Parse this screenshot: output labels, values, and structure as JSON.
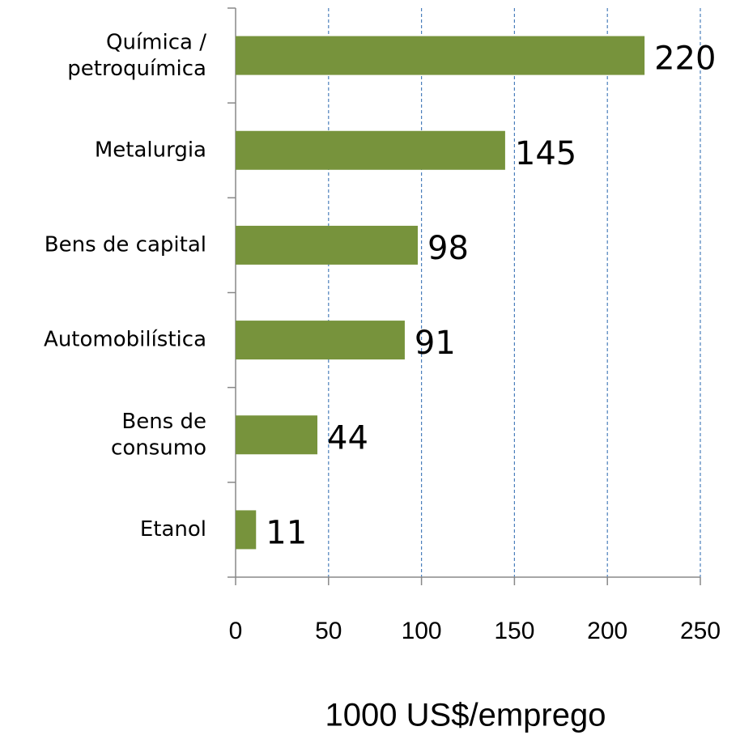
{
  "chart_data": {
    "type": "bar",
    "orientation": "horizontal",
    "x_label": "1000 US$/emprego",
    "categories": [
      "Química /\npetroquímica",
      "Metalurgia",
      "Bens de capital",
      "Automobilística",
      "Bens de\nconsumo",
      "Etanol"
    ],
    "values": [
      220,
      145,
      98,
      91,
      44,
      11
    ],
    "color": "#77933c",
    "xlim": [
      0,
      250
    ],
    "xticks": [
      0,
      50,
      100,
      150,
      200,
      250
    ],
    "grid": true,
    "grid_color": "#4a7ebb"
  }
}
